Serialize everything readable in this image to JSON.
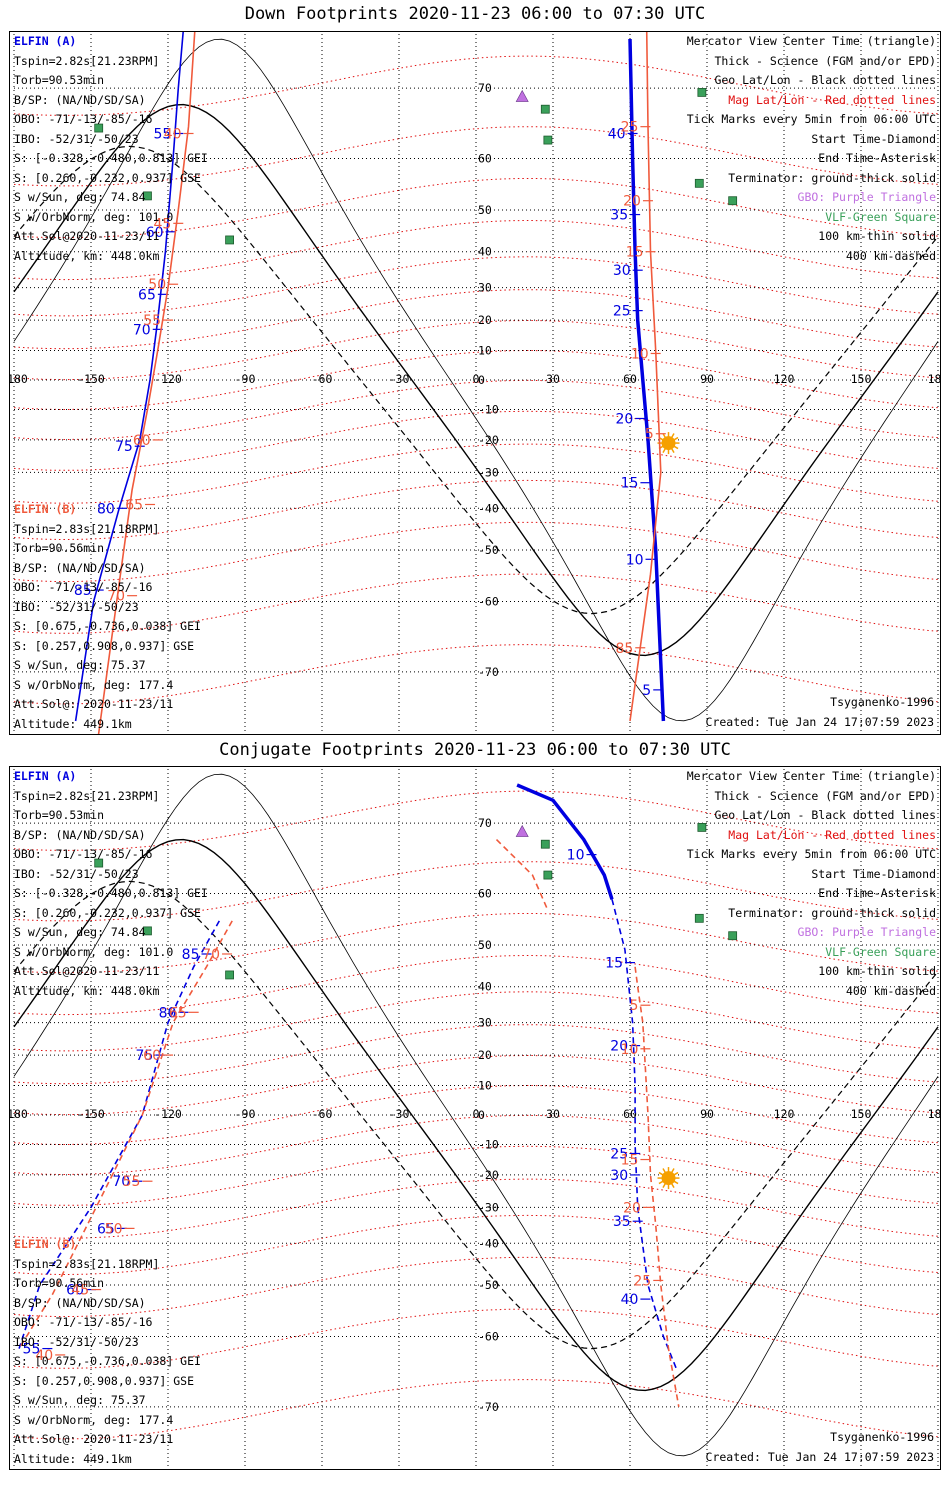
{
  "panels": [
    {
      "title": "Down Footprints 2020-11-23 06:00 to 07:30 UTC",
      "elfin_a": {
        "name": "ELFIN (A)",
        "lines": [
          "Tspin=2.82s[21.23RPM]",
          "Torb=90.53min",
          "B/SP: (NA/ND/SD/SA)",
          "OBO: -71/-13/-85/-16",
          "IBO: -52/31/-50/23",
          "S: [-0.328,-0.480,0.813] GEI",
          "S: [0.260,-0.232,0.937] GSE",
          "S w/Sun, deg: 74.84",
          "S w/OrbNorm, deg: 101.0",
          "Att.Sol@2020-11-23/11",
          "Altitude, km: 448.0km"
        ]
      },
      "elfin_b": {
        "name": "ELFIN (B)",
        "lines": [
          "Tspin=2.83s[21.18RPM]",
          "Torb=90.56min",
          "B/SP: (NA/ND/SD/SA)",
          "OBO: -71/-13/-85/-16",
          "IBO: -52/31/-50/23",
          "S: [0.675,-0.736,0.038] GEI",
          "S: [0.257,0.908,0.937] GSE",
          "S w/Sun, deg: 75.37",
          "S w/OrbNorm, deg: 177.4",
          "Att.Sol@: 2020-11-23/11",
          "Altitude: 449.1km"
        ]
      },
      "legend": [
        "Mercator View Center Time (triangle)",
        "Thick - Science (FGM and/or EPD)",
        "Geo Lat/Lon - Black dotted lines",
        "Mag Lat/Lon - Red dotted lines",
        "Tick Marks every 5min from 06:00 UTC",
        "Start Time-Diamond",
        "End Time-Asterisk",
        "Terminator: ground-thick solid",
        "GBO: Purple Triangle",
        "VLF-Green Square",
        "100 km-thin solid",
        "400 km-dashed"
      ],
      "model": "Tsyganenko-1996",
      "created": "Created: Tue Jan 24 17:07:59 2023"
    },
    {
      "title": "Conjugate Footprints 2020-11-23 06:00 to 07:30 UTC",
      "elfin_a": {
        "name": "ELFIN (A)",
        "lines": [
          "Tspin=2.82s[21.23RPM]",
          "Torb=90.53min",
          "B/SP: (NA/ND/SD/SA)",
          "OBO: -71/-13/-85/-16",
          "IBO: -52/31/-50/23",
          "S: [-0.328,-0.480,0.813] GEI",
          "S: [0.260,-0.232,0.937] GSE",
          "S w/Sun, deg: 74.84",
          "S w/OrbNorm, deg: 101.0",
          "Att.Sol@2020-11-23/11",
          "Altitude, km: 448.0km"
        ]
      },
      "elfin_b": {
        "name": "ELFIN (B)",
        "lines": [
          "Tspin=2.83s[21.18RPM]",
          "Torb=90.56min",
          "B/SP: (NA/ND/SD/SA)",
          "OBO: -71/-13/-85/-16",
          "IBO: -52/31/-50/23",
          "S: [0.675,-0.736,0.038] GEI",
          "S: [0.257,0.908,0.937] GSE",
          "S w/Sun, deg: 75.37",
          "S w/OrbNorm, deg: 177.4",
          "Att.Sol@: 2020-11-23/11",
          "Altitude: 449.1km"
        ]
      },
      "legend": [
        "Mercator View Center Time (triangle)",
        "Thick - Science (FGM and/or EPD)",
        "Geo Lat/Lon - Black dotted lines",
        "Mag Lat/Lon - Red dotted lines",
        "Tick Marks every 5min from 06:00 UTC",
        "Start Time-Diamond",
        "End Time-Asterisk",
        "Terminator: ground-thick solid",
        "GBO: Purple Triangle",
        "VLF-Green Square",
        "100 km-thin solid",
        "400 km-dashed"
      ],
      "model": "Tsyganenko-1996",
      "created": "Created: Tue Jan 24 17:07:59 2023"
    }
  ],
  "colors": {
    "elfin_a": "#0000e0",
    "elfin_b": "#f05a3c",
    "mag_grid": "#e01010",
    "geo_grid": "#000000",
    "gbo": "#c070e0",
    "vlf": "#3aa05a",
    "sun": "#f5a000"
  },
  "chart_data": [
    {
      "type": "map",
      "projection": "Mercator",
      "xlim": [
        -180,
        180
      ],
      "ylim": [
        -85,
        85
      ],
      "lon_ticks": [
        "-180",
        "-150",
        "-120",
        "-90",
        "-60",
        "-30",
        "0",
        "30",
        "60",
        "90",
        "120",
        "150",
        "180"
      ],
      "lat_ticks": [
        "70",
        "60",
        "50",
        "40",
        "30",
        "20",
        "10",
        "0",
        "-10",
        "-20",
        "-30",
        "-40",
        "-50",
        "-60",
        "-70"
      ],
      "grid": true,
      "sun": {
        "lon": 75,
        "lat": -21
      },
      "gbo_triangles": [
        {
          "lon": 20,
          "lat": 80
        },
        {
          "lon": 18,
          "lat": 69
        }
      ],
      "vlf_squares": [
        {
          "lon": -147,
          "lat": 64.8
        },
        {
          "lon": -128,
          "lat": 53
        },
        {
          "lon": -96,
          "lat": 43
        },
        {
          "lon": 27,
          "lat": 67.4
        },
        {
          "lon": 28,
          "lat": 63
        },
        {
          "lon": 88,
          "lat": 69.5
        },
        {
          "lon": 87,
          "lat": 55.5
        },
        {
          "lon": 100,
          "lat": 52
        }
      ],
      "series": [
        {
          "name": "ELFIN (A)",
          "style": "solid",
          "lon": [
            -112,
            -116,
            -118,
            -121,
            -124,
            -127,
            -131,
            -139,
            -149,
            -156
          ],
          "lat": [
            80,
            70,
            60,
            40,
            20,
            0,
            -20,
            -40,
            -60,
            -75
          ],
          "ticks": [
            {
              "label": "50",
              "lon": -112,
              "lat": 80
            },
            {
              "label": "55",
              "lon": -116,
              "lat": 64
            },
            {
              "label": "60",
              "lon": -119,
              "lat": 45
            },
            {
              "label": "65",
              "lon": -122,
              "lat": 28
            },
            {
              "label": "70",
              "lon": -124,
              "lat": 17
            },
            {
              "label": "75",
              "lon": -131,
              "lat": -22
            },
            {
              "label": "80",
              "lon": -138,
              "lat": -40
            },
            {
              "label": "85",
              "lon": -147,
              "lat": -58
            }
          ]
        },
        {
          "name": "ELFIN (A) science",
          "style": "solid",
          "lon": [
            60,
            61,
            62,
            63,
            65,
            67,
            70,
            73
          ],
          "lat": [
            75,
            60,
            40,
            20,
            0,
            -20,
            -50,
            -75
          ],
          "ticks": [
            {
              "label": "40",
              "lon": 61,
              "lat": 64
            },
            {
              "label": "35",
              "lon": 62,
              "lat": 49
            },
            {
              "label": "30",
              "lon": 63,
              "lat": 35
            },
            {
              "label": "25",
              "lon": 63,
              "lat": 23
            },
            {
              "label": "20",
              "lon": 64,
              "lat": -13
            },
            {
              "label": "15",
              "lon": 66,
              "lat": -33
            },
            {
              "label": "10",
              "lon": 68,
              "lat": -52
            },
            {
              "label": "5",
              "lon": 71,
              "lat": -72
            }
          ]
        },
        {
          "name": "ELFIN (B)",
          "style": "solid",
          "lon": [
            -108,
            -112,
            -116,
            -120,
            -124,
            -128,
            -134,
            -140,
            -150
          ],
          "lat": [
            80,
            65,
            50,
            30,
            10,
            -10,
            -35,
            -60,
            -80
          ],
          "ticks": [
            {
              "label": "40",
              "lon": -112,
              "lat": 64
            },
            {
              "label": "45",
              "lon": -116,
              "lat": 47
            },
            {
              "label": "50",
              "lon": -118,
              "lat": 31
            },
            {
              "label": "55",
              "lon": -120,
              "lat": 20
            },
            {
              "label": "60",
              "lon": -124,
              "lat": -20
            },
            {
              "label": "65",
              "lon": -127,
              "lat": -39
            },
            {
              "label": "70",
              "lon": -134,
              "lat": -59
            },
            {
              "label": "75",
              "lon": -146,
              "lat": -78
            }
          ]
        },
        {
          "name": "ELFIN (B) 2",
          "style": "solid",
          "lon": [
            66,
            67,
            68,
            70,
            72,
            68,
            60
          ],
          "lat": [
            82,
            65,
            40,
            10,
            -30,
            -55,
            -75
          ],
          "ticks": [
            {
              "label": "25",
              "lon": 66,
              "lat": 65
            },
            {
              "label": "20",
              "lon": 67,
              "lat": 52
            },
            {
              "label": "15",
              "lon": 68,
              "lat": 40
            },
            {
              "label": "10",
              "lon": 70,
              "lat": 9
            },
            {
              "label": "5",
              "lon": 72,
              "lat": -18
            },
            {
              "label": "85",
              "lon": 64,
              "lat": -67
            }
          ]
        }
      ]
    },
    {
      "type": "map",
      "projection": "Mercator",
      "xlim": [
        -180,
        180
      ],
      "ylim": [
        -85,
        85
      ],
      "lon_ticks": [
        "-180",
        "-150",
        "-120",
        "-90",
        "-60",
        "-30",
        "0",
        "30",
        "60",
        "90",
        "120",
        "150",
        "180"
      ],
      "lat_ticks": [
        "70",
        "60",
        "50",
        "40",
        "30",
        "20",
        "10",
        "0",
        "-10",
        "-20",
        "-30",
        "-40",
        "-50",
        "-60",
        "-70"
      ],
      "grid": true,
      "sun": {
        "lon": 75,
        "lat": -21
      },
      "gbo_triangles": [
        {
          "lon": 20,
          "lat": 80
        },
        {
          "lon": 18,
          "lat": 69
        }
      ],
      "vlf_squares": [
        {
          "lon": -147,
          "lat": 64.8
        },
        {
          "lon": -128,
          "lat": 53
        },
        {
          "lon": -96,
          "lat": 43
        },
        {
          "lon": 27,
          "lat": 67.4
        },
        {
          "lon": 28,
          "lat": 63
        },
        {
          "lon": 88,
          "lat": 69.5
        },
        {
          "lon": 87,
          "lat": 55.5
        },
        {
          "lon": 100,
          "lat": 52
        }
      ],
      "series": [
        {
          "name": "ELFIN (A) science",
          "style": "solid",
          "lon": [
            16,
            30,
            42,
            50,
            53
          ],
          "lat": [
            74,
            72.5,
            68,
            63,
            59
          ],
          "ticks": [
            {
              "label": "10",
              "lon": 45,
              "lat": 66
            }
          ]
        },
        {
          "name": "ELFIN (A)",
          "style": "dashed",
          "lon": [
            53,
            58,
            61,
            62,
            62,
            63,
            67,
            73,
            78
          ],
          "lat": [
            59,
            49,
            30,
            10,
            -10,
            -30,
            -50,
            -60,
            -65
          ],
          "ticks": [
            {
              "label": "15",
              "lon": 60,
              "lat": 46
            },
            {
              "label": "20",
              "lon": 62,
              "lat": 23
            },
            {
              "label": "25",
              "lon": 62,
              "lat": -13
            },
            {
              "label": "30",
              "lon": 62,
              "lat": -20
            },
            {
              "label": "35",
              "lon": 63,
              "lat": -34
            },
            {
              "label": "40",
              "lon": 66,
              "lat": -53
            }
          ]
        },
        {
          "name": "ELFIN (A) 2",
          "style": "dashed",
          "lon": [
            -100,
            -110,
            -120,
            -130,
            -150,
            -170,
            -178
          ],
          "lat": [
            55,
            45,
            30,
            0,
            -30,
            -50,
            -62
          ],
          "ticks": [
            {
              "label": "85",
              "lon": -105,
              "lat": 48
            },
            {
              "label": "80",
              "lon": -114,
              "lat": 33
            },
            {
              "label": "75",
              "lon": -123,
              "lat": 20
            },
            {
              "label": "70",
              "lon": -132,
              "lat": -22
            },
            {
              "label": "65",
              "lon": -138,
              "lat": -36
            },
            {
              "label": "60",
              "lon": -150,
              "lat": -51
            },
            {
              "label": "55",
              "lon": -167,
              "lat": -62
            }
          ]
        },
        {
          "name": "ELFIN (B)",
          "style": "dashed",
          "lon": [
            8,
            22,
            28
          ],
          "lat": [
            68,
            63,
            57
          ],
          "ticks": []
        },
        {
          "name": "ELFIN (B) 2",
          "style": "dashed",
          "lon": [
            62,
            63,
            65,
            67,
            68,
            70,
            72,
            75,
            79
          ],
          "lat": [
            45,
            40,
            30,
            0,
            -20,
            -35,
            -50,
            -62,
            -70
          ],
          "ticks": [
            {
              "label": "5",
              "lon": 66,
              "lat": 35
            },
            {
              "label": "10",
              "lon": 66,
              "lat": 22
            },
            {
              "label": "15",
              "lon": 66,
              "lat": -15
            },
            {
              "label": "20",
              "lon": 67,
              "lat": -30
            },
            {
              "label": "25",
              "lon": 71,
              "lat": -49
            }
          ]
        },
        {
          "name": "ELFIN (B) 3",
          "style": "dashed",
          "lon": [
            -95,
            -105,
            -118,
            -130,
            -148,
            -165,
            -178
          ],
          "lat": [
            55,
            45,
            30,
            0,
            -30,
            -52,
            -62
          ],
          "ticks": [
            {
              "label": "70",
              "lon": -97,
              "lat": 48
            },
            {
              "label": "65",
              "lon": -110,
              "lat": 33
            },
            {
              "label": "60",
              "lon": -120,
              "lat": 20
            },
            {
              "label": "55",
              "lon": -128,
              "lat": -22
            },
            {
              "label": "50",
              "lon": -135,
              "lat": -36
            },
            {
              "label": "45",
              "lon": -148,
              "lat": -51
            },
            {
              "label": "40",
              "lon": -162,
              "lat": -63
            }
          ]
        }
      ]
    }
  ]
}
